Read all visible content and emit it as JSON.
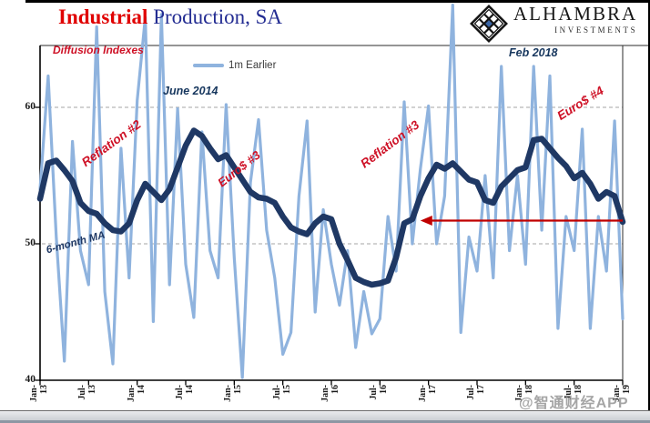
{
  "header": {
    "title_red": "Industrial",
    "title_rest": " Production, SA",
    "logo_name": "ALHAMBRA",
    "logo_sub": "INVESTMENTS"
  },
  "legend": {
    "label": "1m Earlier"
  },
  "annotations": {
    "diffusion": "Diffusion Indexes",
    "june2014": "June 2014",
    "feb2018": "Feb 2018",
    "reflation2": "Reflation #2",
    "euro3": "Euro$ #3",
    "reflation3": "Reflation #3",
    "euro4": "Euro$ #4",
    "ma_label": "6-month MA"
  },
  "watermark": "@智通财经APP",
  "colors": {
    "series_1m": "#8fb3de",
    "series_ma": "#1f3864",
    "annotation_red": "#ce1126",
    "title_red": "#e00000",
    "title_blue": "#232c92",
    "arrow_red": "#c00000",
    "logo_center_blue": "#3a66a7"
  },
  "chart_data": {
    "type": "line",
    "title": "Industrial Production, SA",
    "subtitle": "Diffusion Indexes",
    "x_start": "Jan-2013",
    "x_interval": "monthly",
    "x_tick_labels": [
      "Jan-13",
      "Jul-13",
      "Jan-14",
      "Jul-14",
      "Jan-15",
      "Jul-15",
      "Jan-16",
      "Jul-16",
      "Jan-17",
      "Jul-17",
      "Jan-18",
      "Jul-18",
      "Jan-19"
    ],
    "yticks": [
      60,
      50,
      40
    ],
    "gridlines_at": [
      60,
      50
    ],
    "ylim": [
      40,
      65
    ],
    "legend_position": "top-center",
    "series": [
      {
        "name": "1m Earlier",
        "color": "#8fb3de",
        "width": 3.2,
        "values": [
          54.0,
          62.3,
          50.5,
          41.4,
          57.5,
          49.5,
          47.0,
          65.9,
          46.5,
          41.2,
          57.0,
          47.5,
          60.5,
          66.6,
          44.3,
          66.8,
          47.0,
          59.9,
          48.5,
          44.6,
          58.2,
          49.5,
          47.5,
          60.2,
          49.0,
          40.2,
          54.5,
          59.1,
          51.0,
          47.5,
          41.9,
          43.5,
          53.5,
          59.0,
          45.0,
          52.5,
          48.5,
          45.5,
          49.5,
          42.4,
          46.5,
          43.4,
          44.5,
          52.0,
          48.0,
          60.4,
          50.0,
          55.5,
          60.1,
          50.0,
          53.5,
          67.5,
          43.5,
          50.5,
          48.0,
          55.0,
          47.5,
          63.0,
          49.5,
          55.0,
          48.5,
          63.0,
          51.0,
          62.3,
          43.8,
          52.0,
          49.5,
          58.4,
          43.8,
          52.0,
          48.0,
          59.0,
          44.5
        ]
      },
      {
        "name": "6-month MA",
        "color": "#1f3864",
        "width": 6.5,
        "values": [
          53.3,
          55.9,
          56.1,
          55.4,
          54.6,
          53.0,
          52.4,
          52.2,
          51.5,
          51.0,
          50.9,
          51.5,
          53.2,
          54.4,
          53.8,
          53.2,
          54.0,
          55.6,
          57.2,
          58.3,
          57.9,
          57.0,
          56.2,
          56.5,
          55.6,
          54.7,
          53.8,
          53.4,
          53.3,
          53.0,
          52.0,
          51.2,
          50.9,
          50.7,
          51.5,
          52.0,
          51.8,
          50.0,
          48.8,
          47.5,
          47.2,
          47.0,
          47.1,
          47.3,
          49.0,
          51.5,
          51.8,
          53.5,
          54.8,
          55.8,
          55.5,
          55.9,
          55.3,
          54.7,
          54.5,
          53.2,
          53.0,
          54.2,
          54.8,
          55.4,
          55.6,
          57.6,
          57.7,
          57.0,
          56.3,
          55.7,
          54.8,
          55.2,
          54.4,
          53.3,
          53.8,
          53.5,
          51.6
        ]
      }
    ],
    "arrow": {
      "y_value": 51.7,
      "from_month": 72,
      "tip_month": 47.0,
      "color": "#c00000"
    }
  }
}
